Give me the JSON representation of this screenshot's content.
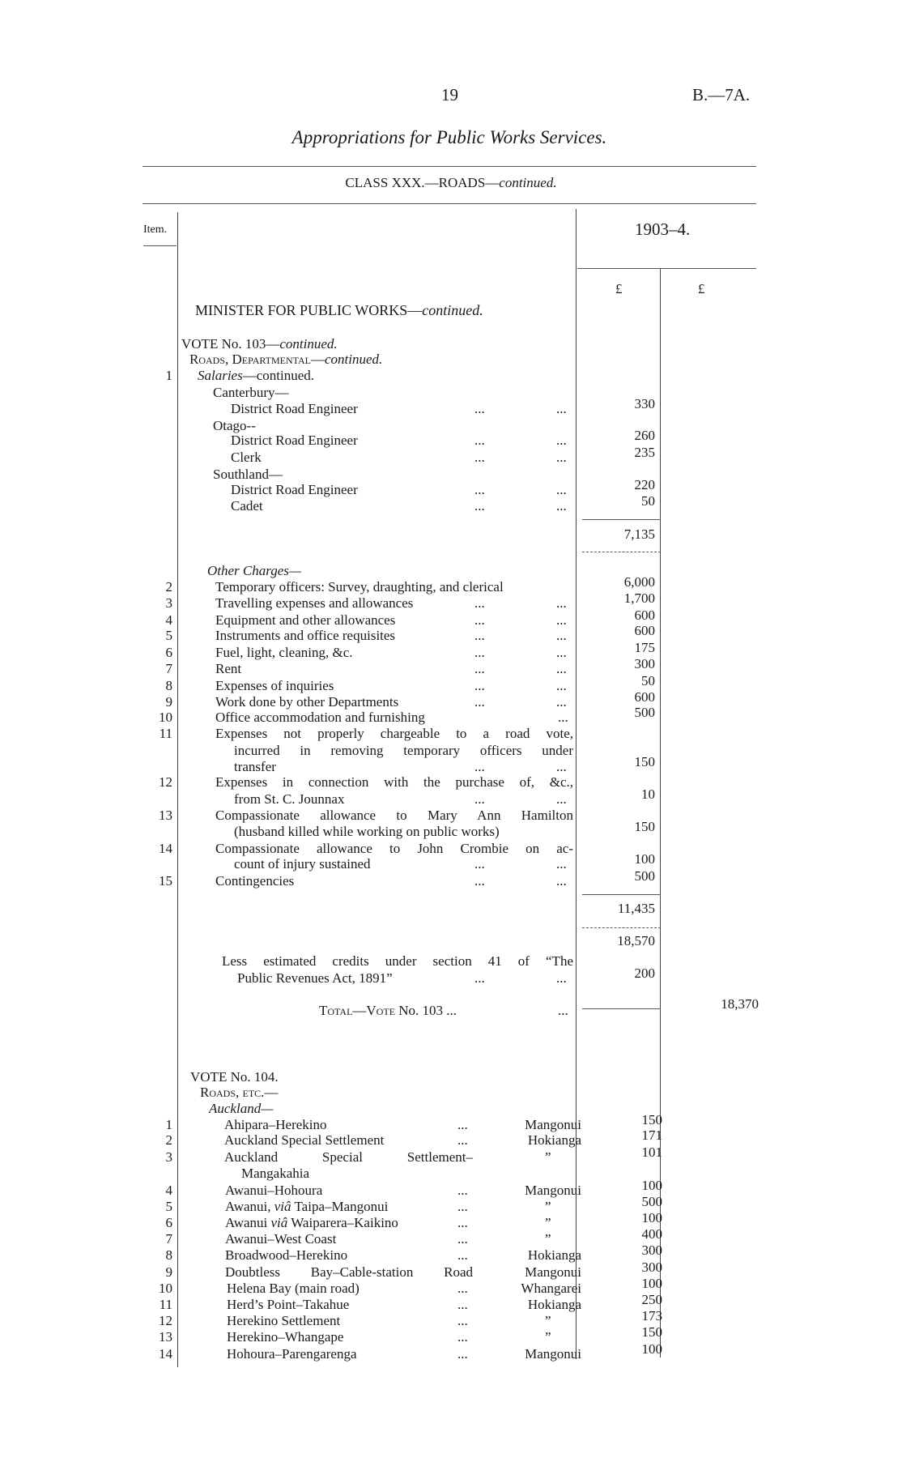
{
  "header": {
    "page_number": "19",
    "doc_ref": "B.—7A.",
    "title": "Appropriations for Public Works Services.",
    "class_heading": "CLASS XXX.—ROADS—",
    "class_heading_em": "continued.",
    "item_column": "Item.",
    "year_column": "1903–4.",
    "currency_1": "£",
    "currency_2": "£",
    "minister": "MINISTER FOR PUBLIC WORKS—",
    "minister_em": "continued."
  },
  "leader": "...",
  "ditto": "”",
  "vote_103": {
    "lines": [
      {
        "parts": [
          {
            "t": "VOTE No. 103—"
          },
          {
            "t": "continued.",
            "s": "i"
          }
        ]
      },
      {
        "parts": [
          {
            "t": "Roads, Departmental—",
            "s": "sc"
          },
          {
            "t": "continued.",
            "s": "i"
          }
        ]
      },
      {
        "item": "1",
        "parts": [
          {
            "t": "Salaries",
            "s": "i"
          },
          {
            "t": "—continued."
          }
        ]
      },
      {
        "parts": [
          {
            "t": "Canterbury—"
          }
        ]
      },
      {
        "parts": [
          {
            "t": "District Road Engineer"
          }
        ],
        "dots": 2,
        "amount": "330"
      },
      {
        "parts": [
          {
            "t": "Otago--"
          }
        ]
      },
      {
        "parts": [
          {
            "t": "District Road Engineer"
          }
        ],
        "dots": 2,
        "amount": "260"
      },
      {
        "parts": [
          {
            "t": "Clerk"
          }
        ],
        "dots": 2,
        "amount": "235"
      },
      {
        "parts": [
          {
            "t": "Southland—"
          }
        ]
      },
      {
        "parts": [
          {
            "t": "District Road Engineer"
          }
        ],
        "dots": 2,
        "amount": "220"
      },
      {
        "parts": [
          {
            "t": "Cadet"
          }
        ],
        "dots": 2,
        "amount": "50"
      },
      {
        "parts": [],
        "amount": "7,135"
      },
      {
        "parts": [
          {
            "t": "Other Charges—",
            "s": "i"
          }
        ]
      },
      {
        "item": "2",
        "parts": [
          {
            "t": "Temporary officers: Survey, draughting, and clerical"
          }
        ],
        "amount": "6,000"
      },
      {
        "item": "3",
        "parts": [
          {
            "t": "Travelling expenses and allowances"
          }
        ],
        "dots": 2,
        "amount": "1,700"
      },
      {
        "item": "4",
        "parts": [
          {
            "t": "Equipment and other allowances"
          }
        ],
        "dots": 2,
        "amount": "600"
      },
      {
        "item": "5",
        "parts": [
          {
            "t": "Instruments and office requisites"
          }
        ],
        "dots": 2,
        "amount": "600"
      },
      {
        "item": "6",
        "parts": [
          {
            "t": "Fuel, light, cleaning, &c."
          }
        ],
        "dots": 2,
        "amount": "175"
      },
      {
        "item": "7",
        "parts": [
          {
            "t": "Rent"
          }
        ],
        "dots": 2,
        "amount": "300"
      },
      {
        "item": "8",
        "parts": [
          {
            "t": "Expenses of inquiries"
          }
        ],
        "dots": 2,
        "amount": "50"
      },
      {
        "item": "9",
        "parts": [
          {
            "t": "Work done by other Departments"
          }
        ],
        "dots": 2,
        "amount": "600"
      },
      {
        "item": "10",
        "parts": [
          {
            "t": "Office accommodation and furnishing"
          }
        ],
        "dots": 1,
        "amount": "500"
      },
      {
        "item": "11",
        "parts": [
          {
            "t": "Expenses not properly chargeable to a road vote,"
          }
        ]
      },
      {
        "parts": [
          {
            "t": "incurred in removing temporary officers under"
          }
        ]
      },
      {
        "parts": [
          {
            "t": "transfer"
          }
        ],
        "dots": 2,
        "amount": "150"
      },
      {
        "item": "12",
        "parts": [
          {
            "t": "Expenses in connection with the purchase of, &c.,"
          }
        ]
      },
      {
        "parts": [
          {
            "t": "from St. C. Jounnax"
          }
        ],
        "dots": 2,
        "amount": "10"
      },
      {
        "item": "13",
        "parts": [
          {
            "t": "Compassionate allowance to Mary Ann Hamilton"
          }
        ]
      },
      {
        "parts": [
          {
            "t": "(husband killed while working on public works)"
          }
        ],
        "amount": "150"
      },
      {
        "item": "14",
        "parts": [
          {
            "t": "Compassionate allowance to John Crombie on ac-"
          }
        ]
      },
      {
        "parts": [
          {
            "t": "count of injury sustained"
          }
        ],
        "dots": 2,
        "amount": "100"
      },
      {
        "item": "15",
        "parts": [
          {
            "t": "Contingencies"
          }
        ],
        "dots": 2,
        "amount": "500"
      },
      {
        "parts": [],
        "amount": "11,435"
      },
      {
        "parts": [],
        "amount": "18,570"
      },
      {
        "parts": [
          {
            "t": "Less estimated credits under section 41 of “The"
          }
        ]
      },
      {
        "parts": [
          {
            "t": "Public Revenues Act, 1891”"
          }
        ],
        "dots": 2,
        "amount": "200"
      },
      {
        "parts": [
          {
            "t": "Total—Vote",
            "s": "sc"
          },
          {
            "t": " No. 103 ..."
          }
        ],
        "dots": 1,
        "total": "18,370"
      }
    ]
  },
  "vote_104": {
    "lines": [
      {
        "parts": [
          {
            "t": "VOTE No. 104."
          }
        ]
      },
      {
        "parts": [
          {
            "t": "Roads, etc.—",
            "s": "sc"
          }
        ]
      },
      {
        "parts": [
          {
            "t": "Auckland—",
            "s": "i"
          }
        ]
      },
      {
        "item": "1",
        "parts": [
          {
            "t": "Ahipara–Herekino"
          }
        ],
        "dots": 1,
        "district": "Mangonui",
        "amount": "150"
      },
      {
        "item": "2",
        "parts": [
          {
            "t": "Auckland Special Settlement"
          }
        ],
        "dots": 1,
        "district": "Hokianga",
        "amount": "171"
      },
      {
        "item": "3",
        "parts": [
          {
            "t": "Auckland Special Settlement–"
          }
        ],
        "ditto": true,
        "amount": "101"
      },
      {
        "parts": [
          {
            "t": "Mangakahia"
          }
        ]
      },
      {
        "item": "4",
        "parts": [
          {
            "t": "Awanui–Hohoura"
          }
        ],
        "dots": 1,
        "district": "Mangonui",
        "amount": "100"
      },
      {
        "item": "5",
        "parts": [
          {
            "t": "Awanui, "
          },
          {
            "t": "viâ",
            "s": "i"
          },
          {
            "t": " Taipa–Mangonui"
          }
        ],
        "dots": 1,
        "ditto": true,
        "amount": "500"
      },
      {
        "item": "6",
        "parts": [
          {
            "t": "Awanui "
          },
          {
            "t": "viâ",
            "s": "i"
          },
          {
            "t": " Waiparera–Kaikino"
          }
        ],
        "dots": 1,
        "ditto": true,
        "amount": "100"
      },
      {
        "item": "7",
        "parts": [
          {
            "t": "Awanui–West Coast"
          }
        ],
        "dots": 1,
        "ditto": true,
        "amount": "400"
      },
      {
        "item": "8",
        "parts": [
          {
            "t": "Broadwood–Herekino"
          }
        ],
        "dots": 1,
        "district": "Hokianga",
        "amount": "300"
      },
      {
        "item": "9",
        "parts": [
          {
            "t": "Doubtless Bay–Cable-station Road"
          }
        ],
        "district": "Mangonui",
        "amount": "300"
      },
      {
        "item": "10",
        "parts": [
          {
            "t": "Helena Bay (main road)"
          }
        ],
        "dots": 1,
        "district": "Whangarei",
        "amount": "100"
      },
      {
        "item": "11",
        "parts": [
          {
            "t": "Herd’s Point–Takahue"
          }
        ],
        "dots": 1,
        "district": "Hokianga",
        "amount": "250"
      },
      {
        "item": "12",
        "parts": [
          {
            "t": "Herekino Settlement"
          }
        ],
        "dots": 1,
        "ditto": true,
        "amount": "173"
      },
      {
        "item": "13",
        "parts": [
          {
            "t": "Herekino–Whangape"
          }
        ],
        "dots": 1,
        "ditto": true,
        "amount": "150"
      },
      {
        "item": "14",
        "parts": [
          {
            "t": "Hohoura–Parengarenga"
          }
        ],
        "dots": 1,
        "district": "Mangonui",
        "amount": "100"
      }
    ]
  }
}
